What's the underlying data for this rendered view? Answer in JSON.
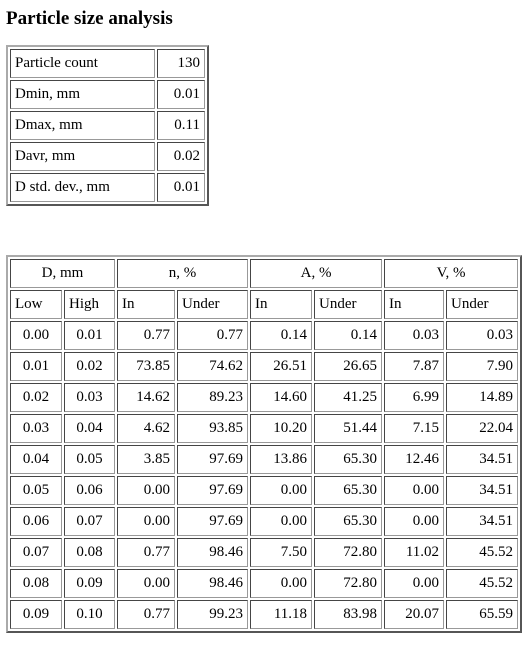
{
  "title": "Particle size analysis",
  "summary": {
    "rows": [
      [
        "Particle count",
        "130"
      ],
      [
        "Dmin, mm",
        "0.01"
      ],
      [
        "Dmax, mm",
        "0.11"
      ],
      [
        "Davr, mm",
        "0.02"
      ],
      [
        "D std. dev., mm",
        "0.01"
      ]
    ]
  },
  "table": {
    "header_groups": [
      "D, mm",
      "n, %",
      "A, %",
      "V, %"
    ],
    "header_columns": [
      "Low",
      "High",
      "In",
      "Under",
      "In",
      "Under",
      "In",
      "Under"
    ],
    "rows": [
      [
        "0.00",
        "0.01",
        "0.77",
        "0.77",
        "0.14",
        "0.14",
        "0.03",
        "0.03"
      ],
      [
        "0.01",
        "0.02",
        "73.85",
        "74.62",
        "26.51",
        "26.65",
        "7.87",
        "7.90"
      ],
      [
        "0.02",
        "0.03",
        "14.62",
        "89.23",
        "14.60",
        "41.25",
        "6.99",
        "14.89"
      ],
      [
        "0.03",
        "0.04",
        "4.62",
        "93.85",
        "10.20",
        "51.44",
        "7.15",
        "22.04"
      ],
      [
        "0.04",
        "0.05",
        "3.85",
        "97.69",
        "13.86",
        "65.30",
        "12.46",
        "34.51"
      ],
      [
        "0.05",
        "0.06",
        "0.00",
        "97.69",
        "0.00",
        "65.30",
        "0.00",
        "34.51"
      ],
      [
        "0.06",
        "0.07",
        "0.00",
        "97.69",
        "0.00",
        "65.30",
        "0.00",
        "34.51"
      ],
      [
        "0.07",
        "0.08",
        "0.77",
        "98.46",
        "7.50",
        "72.80",
        "11.02",
        "45.52"
      ],
      [
        "0.08",
        "0.09",
        "0.00",
        "98.46",
        "0.00",
        "72.80",
        "0.00",
        "45.52"
      ],
      [
        "0.09",
        "0.10",
        "0.77",
        "99.23",
        "11.18",
        "83.98",
        "20.07",
        "65.59"
      ]
    ]
  }
}
